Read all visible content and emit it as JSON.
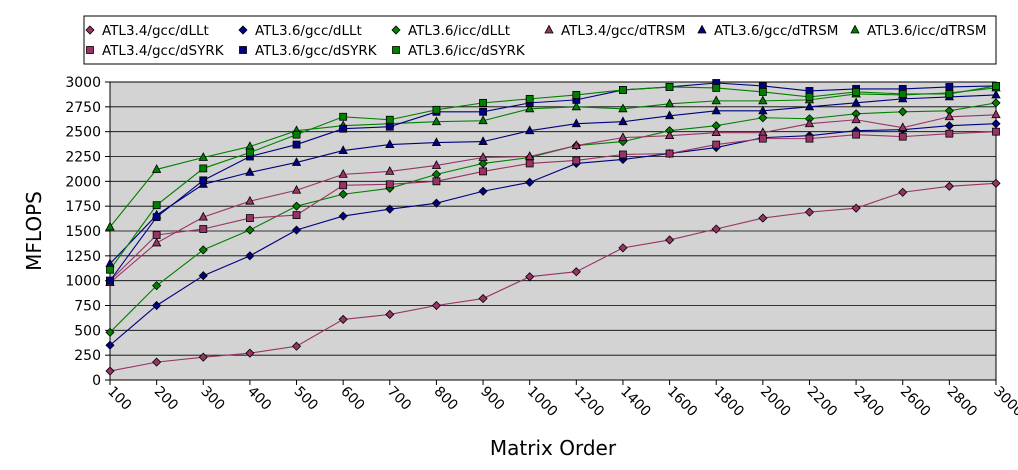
{
  "chart_data": {
    "type": "line",
    "xlabel": "Matrix Order",
    "ylabel": "MFLOPS",
    "ylim": [
      0,
      3000
    ],
    "yticks": [
      "0",
      "250",
      "500",
      "750",
      "1000",
      "1250",
      "1500",
      "1750",
      "2000",
      "2250",
      "2500",
      "2750",
      "3000"
    ],
    "categories": [
      "100",
      "200",
      "300",
      "400",
      "500",
      "600",
      "700",
      "800",
      "900",
      "1000",
      "1200",
      "1400",
      "1600",
      "1800",
      "2000",
      "2200",
      "2400",
      "2600",
      "2800",
      "3000"
    ],
    "grid": true,
    "plot_background": "#d3d3d3",
    "legend_position": "top",
    "series": [
      {
        "name": "ATL3.4/gcc/dLLt",
        "color": "#993366",
        "marker": "diamond",
        "values": [
          90,
          180,
          230,
          270,
          340,
          610,
          660,
          750,
          820,
          1040,
          1090,
          1330,
          1410,
          1520,
          1630,
          1690,
          1730,
          1890,
          1950,
          1980
        ]
      },
      {
        "name": "ATL3.6/gcc/dLLt",
        "color": "#000080",
        "marker": "diamond",
        "values": [
          350,
          750,
          1050,
          1250,
          1510,
          1650,
          1720,
          1780,
          1900,
          1990,
          2180,
          2220,
          2280,
          2340,
          2440,
          2460,
          2510,
          2520,
          2560,
          2580
        ]
      },
      {
        "name": "ATL3.6/icc/dLLt",
        "color": "#008000",
        "marker": "diamond",
        "values": [
          480,
          950,
          1310,
          1510,
          1750,
          1870,
          1930,
          2070,
          2180,
          2240,
          2360,
          2400,
          2510,
          2560,
          2640,
          2630,
          2680,
          2700,
          2710,
          2790
        ]
      },
      {
        "name": "ATL3.4/gcc/dTRSM",
        "color": "#993366",
        "marker": "triangle",
        "values": [
          980,
          1380,
          1640,
          1800,
          1910,
          2070,
          2100,
          2160,
          2240,
          2250,
          2360,
          2440,
          2460,
          2490,
          2490,
          2580,
          2620,
          2540,
          2650,
          2670
        ]
      },
      {
        "name": "ATL3.6/gcc/dTRSM",
        "color": "#000080",
        "marker": "triangle",
        "values": [
          1170,
          1660,
          1970,
          2090,
          2190,
          2310,
          2370,
          2390,
          2400,
          2510,
          2580,
          2600,
          2660,
          2710,
          2710,
          2750,
          2790,
          2830,
          2850,
          2870
        ]
      },
      {
        "name": "ATL3.6/icc/dTRSM",
        "color": "#008000",
        "marker": "triangle",
        "values": [
          1540,
          2120,
          2240,
          2350,
          2510,
          2560,
          2580,
          2600,
          2610,
          2730,
          2750,
          2730,
          2780,
          2810,
          2810,
          2820,
          2880,
          2870,
          2890,
          2940
        ]
      },
      {
        "name": "ATL3.4/gcc/dSYRK",
        "color": "#993366",
        "marker": "square",
        "values": [
          1000,
          1460,
          1520,
          1630,
          1660,
          1960,
          1970,
          2000,
          2100,
          2180,
          2210,
          2270,
          2280,
          2370,
          2430,
          2430,
          2470,
          2450,
          2480,
          2500
        ]
      },
      {
        "name": "ATL3.6/gcc/dSYRK",
        "color": "#000080",
        "marker": "square",
        "values": [
          1000,
          1640,
          2010,
          2250,
          2370,
          2530,
          2550,
          2700,
          2700,
          2790,
          2820,
          2920,
          2950,
          2990,
          2960,
          2910,
          2930,
          2930,
          2950,
          2960
        ]
      },
      {
        "name": "ATL3.6/icc/dSYRK",
        "color": "#008000",
        "marker": "square",
        "values": [
          1110,
          1760,
          2130,
          2290,
          2470,
          2650,
          2620,
          2720,
          2790,
          2830,
          2870,
          2920,
          2950,
          2940,
          2900,
          2850,
          2900,
          2880,
          2880,
          2960
        ]
      }
    ]
  }
}
